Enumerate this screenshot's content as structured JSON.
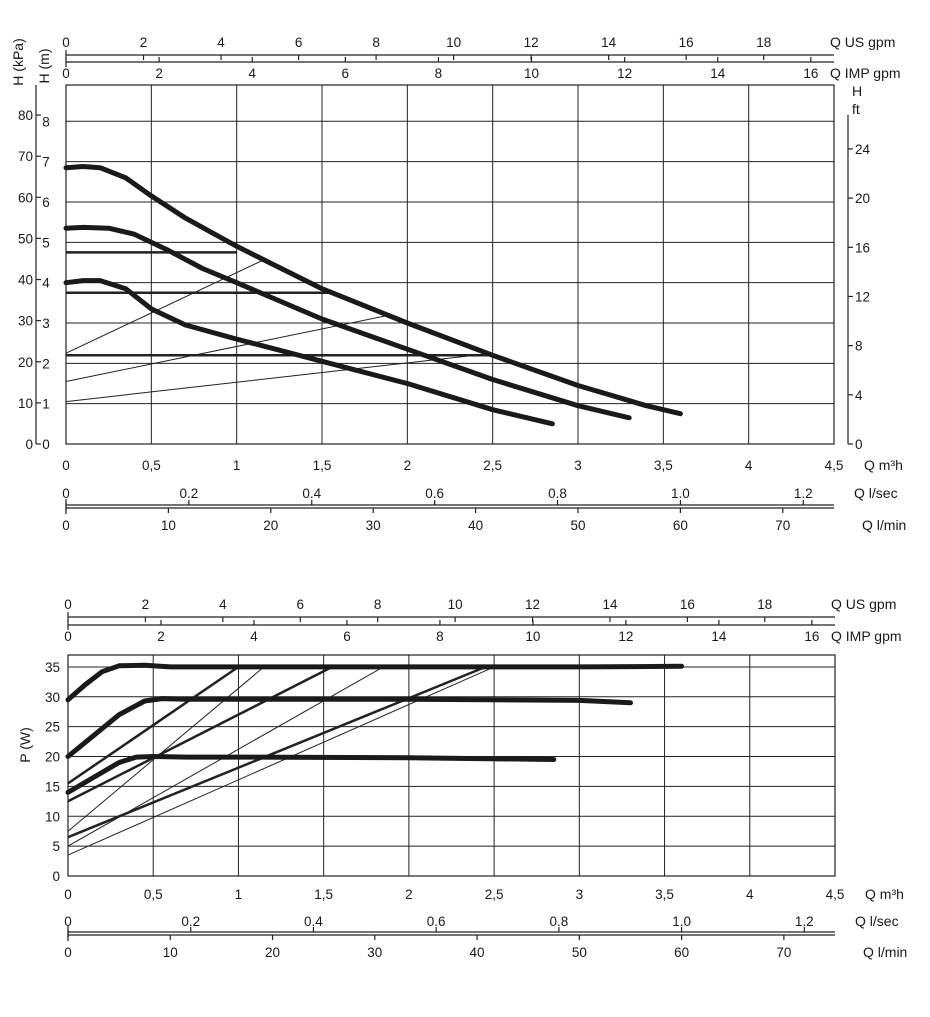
{
  "chart_data": [
    {
      "type": "line",
      "name": "head",
      "ylabel_left_1": "H (kPa)",
      "ylabel_left_2": "H (m)",
      "ylabel_right_1": "H",
      "ylabel_right_2": "ft",
      "xlim": [
        0,
        4.5
      ],
      "ylim_m": [
        0,
        9
      ],
      "grid": true,
      "x_m3h_ticks": [
        "0",
        "0,5",
        "1",
        "1,5",
        "2",
        "2,5",
        "3",
        "3,5",
        "4",
        "4,5"
      ],
      "x_m3h_label": "Q m³h",
      "x_lsec_ticks": [
        "0",
        "0.2",
        "0.4",
        "0.6",
        "0.8",
        "1.0",
        "1.2"
      ],
      "x_lsec_label": "Q l/sec",
      "x_lmin_ticks": [
        "0",
        "10",
        "20",
        "30",
        "40",
        "50",
        "60",
        "70"
      ],
      "x_lmin_label": "Q l/min",
      "x_usgpm_ticks": [
        "0",
        "2",
        "4",
        "6",
        "8",
        "10",
        "12",
        "14",
        "16",
        "18"
      ],
      "x_usgpm_label": "Q US gpm",
      "x_impgpm_ticks": [
        "0",
        "2",
        "4",
        "6",
        "8",
        "10",
        "12",
        "14",
        "16"
      ],
      "x_impgpm_label": "Q IMP gpm",
      "y_kpa_ticks": [
        "0",
        "10",
        "20",
        "30",
        "40",
        "50",
        "60",
        "70",
        "80"
      ],
      "y_m_ticks": [
        "0",
        "1",
        "2",
        "3",
        "4",
        "5",
        "6",
        "7",
        "8"
      ],
      "y_ft_ticks": [
        "0",
        "4",
        "8",
        "12",
        "16",
        "20",
        "24"
      ],
      "series": [
        {
          "x": [
            0,
            0.1,
            0.2,
            0.35,
            0.5,
            0.7,
            1.0,
            1.5,
            2.0,
            2.5,
            3.0,
            3.4,
            3.6
          ],
          "y": [
            6.85,
            6.88,
            6.85,
            6.6,
            6.15,
            5.6,
            4.9,
            3.85,
            3.0,
            2.2,
            1.45,
            0.95,
            0.75
          ]
        },
        {
          "x": [
            0,
            0.1,
            0.25,
            0.4,
            0.6,
            0.8,
            1.0,
            1.5,
            2.0,
            2.5,
            3.0,
            3.3
          ],
          "y": [
            5.35,
            5.37,
            5.35,
            5.2,
            4.8,
            4.35,
            4.0,
            3.1,
            2.35,
            1.6,
            0.95,
            0.65
          ]
        },
        {
          "x": [
            0,
            0.1,
            0.2,
            0.35,
            0.5,
            0.7,
            1.0,
            1.5,
            2.0,
            2.5,
            2.85
          ],
          "y": [
            4.0,
            4.05,
            4.05,
            3.85,
            3.35,
            2.95,
            2.6,
            2.05,
            1.5,
            0.85,
            0.5
          ]
        }
      ],
      "setpoint_lines": [
        {
          "x": [
            0,
            1.0
          ],
          "y": [
            4.75,
            4.75
          ]
        },
        {
          "x": [
            0,
            1.55
          ],
          "y": [
            3.75,
            3.75
          ]
        },
        {
          "x": [
            0,
            2.5
          ],
          "y": [
            2.2,
            2.2
          ]
        }
      ],
      "proportional_lines": [
        {
          "x": [
            0,
            1.15
          ],
          "y": [
            2.25,
            4.55
          ]
        },
        {
          "x": [
            0,
            1.9
          ],
          "y": [
            1.55,
            3.2
          ]
        },
        {
          "x": [
            0,
            2.5
          ],
          "y": [
            1.05,
            2.25
          ]
        }
      ]
    },
    {
      "type": "line",
      "name": "power",
      "ylabel": "P (W)",
      "xlim": [
        0,
        4.5
      ],
      "ylim": [
        0,
        37
      ],
      "grid": true,
      "x_m3h_ticks": [
        "0",
        "0,5",
        "1",
        "1,5",
        "2",
        "2,5",
        "3",
        "3,5",
        "4",
        "4,5"
      ],
      "x_m3h_label": "Q m³h",
      "x_lsec_ticks": [
        "0",
        "0.2",
        "0.4",
        "0.6",
        "0.8",
        "1.0",
        "1.2"
      ],
      "x_lsec_label": "Q l/sec",
      "x_lmin_ticks": [
        "0",
        "10",
        "20",
        "30",
        "40",
        "50",
        "60",
        "70"
      ],
      "x_lmin_label": "Q l/min",
      "x_usgpm_ticks": [
        "0",
        "2",
        "4",
        "6",
        "8",
        "10",
        "12",
        "14",
        "16",
        "18"
      ],
      "x_usgpm_label": "Q US gpm",
      "x_impgpm_ticks": [
        "0",
        "2",
        "4",
        "6",
        "8",
        "10",
        "12",
        "14",
        "16"
      ],
      "x_impgpm_label": "Q IMP gpm",
      "y_ticks": [
        "0",
        "5",
        "10",
        "15",
        "20",
        "25",
        "30",
        "35"
      ],
      "series": [
        {
          "x": [
            0,
            0.1,
            0.2,
            0.3,
            0.45,
            0.6,
            1.0,
            2.0,
            3.0,
            3.6
          ],
          "y": [
            29.5,
            32,
            34.2,
            35.2,
            35.3,
            35.0,
            35.0,
            35.0,
            35.0,
            35.1
          ]
        },
        {
          "x": [
            0,
            0.15,
            0.3,
            0.45,
            0.55,
            0.7,
            1.0,
            2.0,
            3.0,
            3.3
          ],
          "y": [
            20.0,
            23.5,
            27.0,
            29.3,
            29.7,
            29.6,
            29.6,
            29.6,
            29.4,
            29.0
          ]
        },
        {
          "x": [
            0,
            0.15,
            0.3,
            0.4,
            0.5,
            0.7,
            1.0,
            2.0,
            2.85
          ],
          "y": [
            14.0,
            16.5,
            19.0,
            19.9,
            20.0,
            19.9,
            19.9,
            19.8,
            19.5
          ]
        }
      ],
      "thick_lines": [
        {
          "x": [
            0,
            1.0
          ],
          "y": [
            15.5,
            35.0
          ]
        },
        {
          "x": [
            0,
            1.55
          ],
          "y": [
            12.5,
            35.0
          ]
        },
        {
          "x": [
            0,
            2.45
          ],
          "y": [
            6.5,
            35.0
          ]
        }
      ],
      "thin_lines": [
        {
          "x": [
            0,
            1.15
          ],
          "y": [
            7.5,
            35.0
          ]
        },
        {
          "x": [
            0,
            1.85
          ],
          "y": [
            5.0,
            35.0
          ]
        },
        {
          "x": [
            0,
            2.5
          ],
          "y": [
            3.5,
            35.0
          ]
        }
      ]
    }
  ]
}
